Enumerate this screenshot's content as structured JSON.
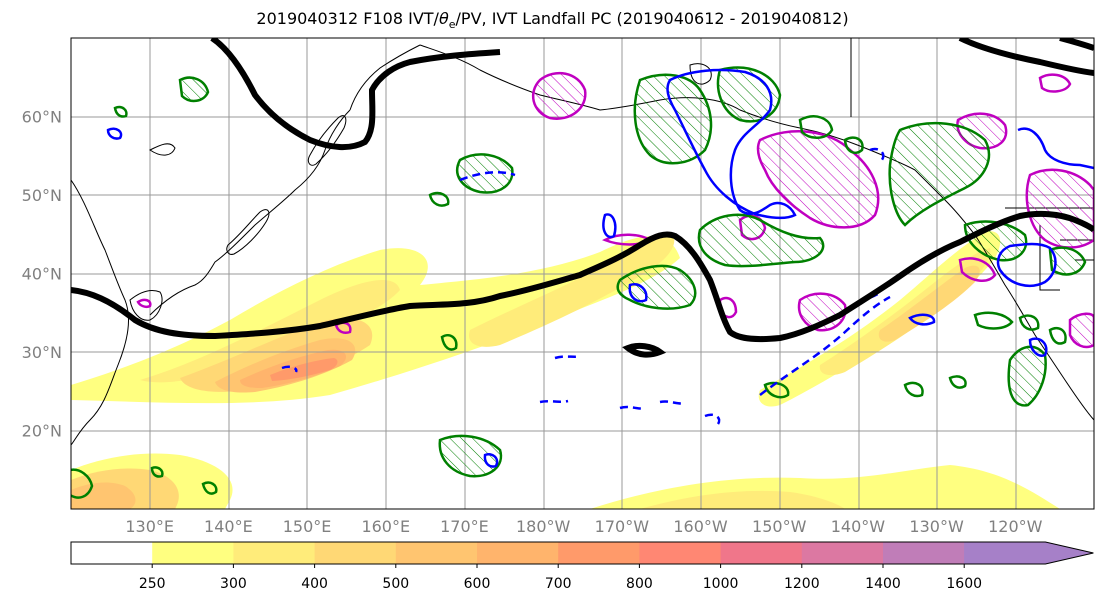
{
  "figure": {
    "title_prefix": "2019040312 F108 IVT/",
    "title_theta": "θ",
    "title_theta_sub": "e",
    "title_suffix": "/PV, IVT Landfall PC (2019040612 - 2019040812)"
  },
  "map": {
    "region": "North Pacific",
    "lat_range": [
      10,
      70
    ],
    "lon_range": [
      120,
      250
    ],
    "gridlines": true
  },
  "lat_labels": [
    {
      "lat": 60,
      "label": "60°N"
    },
    {
      "lat": 50,
      "label": "50°N"
    },
    {
      "lat": 40,
      "label": "40°N"
    },
    {
      "lat": 30,
      "label": "30°N"
    },
    {
      "lat": 20,
      "label": "20°N"
    }
  ],
  "lon_labels": [
    {
      "lon": 130,
      "label": "130°E"
    },
    {
      "lon": 140,
      "label": "140°E"
    },
    {
      "lon": 150,
      "label": "150°E"
    },
    {
      "lon": 160,
      "label": "160°E"
    },
    {
      "lon": 170,
      "label": "170°E"
    },
    {
      "lon": 180,
      "label": "180°W"
    },
    {
      "lon": 190,
      "label": "170°W"
    },
    {
      "lon": 200,
      "label": "160°W"
    },
    {
      "lon": 210,
      "label": "150°W"
    },
    {
      "lon": 220,
      "label": "140°W"
    },
    {
      "lon": 230,
      "label": "130°W"
    },
    {
      "lon": 240,
      "label": "120°W"
    }
  ],
  "colorbar": {
    "levels": [
      250,
      300,
      400,
      500,
      600,
      700,
      800,
      1000,
      1200,
      1400,
      1600
    ],
    "labels": [
      "250",
      "300",
      "400",
      "500",
      "600",
      "700",
      "800",
      "1000",
      "1200",
      "1400",
      "1600"
    ],
    "colors": [
      "#ffffff",
      "#ffff80",
      "#ffec7a",
      "#ffd875",
      "#ffc570",
      "#ffb46c",
      "#ff9a6a",
      "#ff8773",
      "#f0768a",
      "#dc78a2",
      "#c07db8",
      "#a680c8"
    ]
  },
  "colors": {
    "ivt_contour_black": "#000000",
    "pv_green": "#008000",
    "pv_blue": "#0000ff",
    "magenta": "#c000c0",
    "grid": "#999999"
  }
}
